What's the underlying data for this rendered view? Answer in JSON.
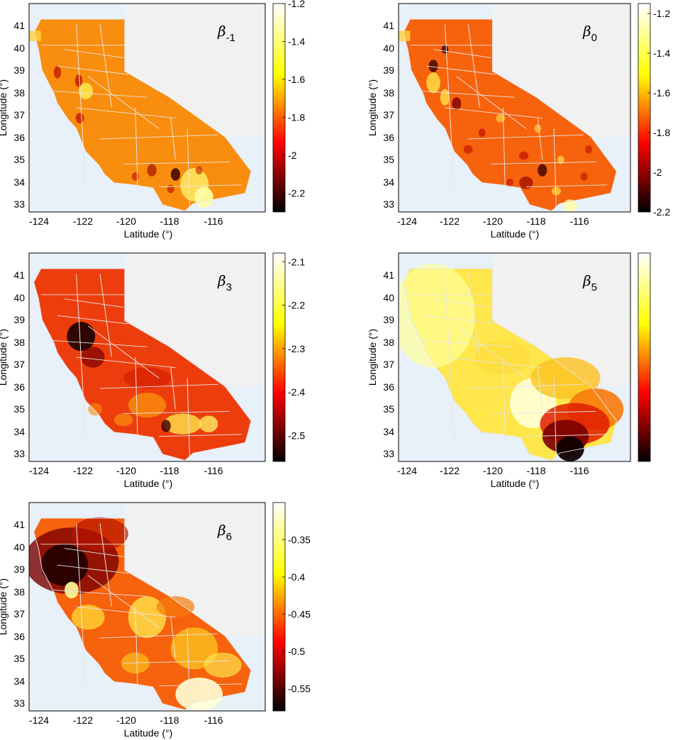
{
  "figure": {
    "xlabel": "Latitude (°)",
    "ylabel": "Longitude (°)",
    "x_ticks": [
      "-124",
      "-122",
      "-120",
      "-118",
      "-116"
    ],
    "y_ticks": [
      "41",
      "40",
      "39",
      "38",
      "37",
      "36",
      "35",
      "34",
      "33"
    ]
  },
  "panels": [
    {
      "id": "beta-minus1",
      "title_symbol": "β",
      "title_sub": "-1",
      "colorbar_ticks": [
        "-1.2",
        "-1.4",
        "-1.6",
        "-1.8",
        "-2",
        "-2.2"
      ],
      "colorbar_range": [
        -2.3,
        -1.2
      ]
    },
    {
      "id": "beta-0",
      "title_symbol": "β",
      "title_sub": "0",
      "colorbar_ticks": [
        "-1.2",
        "-1.4",
        "-1.6",
        "-1.8",
        "-2",
        "-2.2"
      ],
      "colorbar_range": [
        -2.2,
        -1.15
      ]
    },
    {
      "id": "beta-3",
      "title_symbol": "β",
      "title_sub": "3",
      "colorbar_ticks": [
        "-2.1",
        "-2.2",
        "-2.3",
        "-2.4",
        "-2.5"
      ],
      "colorbar_range": [
        -2.56,
        -2.08
      ]
    },
    {
      "id": "beta-5",
      "title_symbol": "β",
      "title_sub": "5",
      "colorbar_ticks": [],
      "colorbar_range": [
        0,
        1
      ]
    },
    {
      "id": "beta-6",
      "title_symbol": "β",
      "title_sub": "6",
      "colorbar_ticks": [
        "-0.35",
        "-0.4",
        "-0.45",
        "-0.5",
        "-0.55"
      ],
      "colorbar_range": [
        -0.58,
        -0.3
      ]
    }
  ],
  "colors": {
    "ocean": "#e8f0fa",
    "outside_land": "#f1f1f1",
    "border": "#e6e6e6"
  }
}
